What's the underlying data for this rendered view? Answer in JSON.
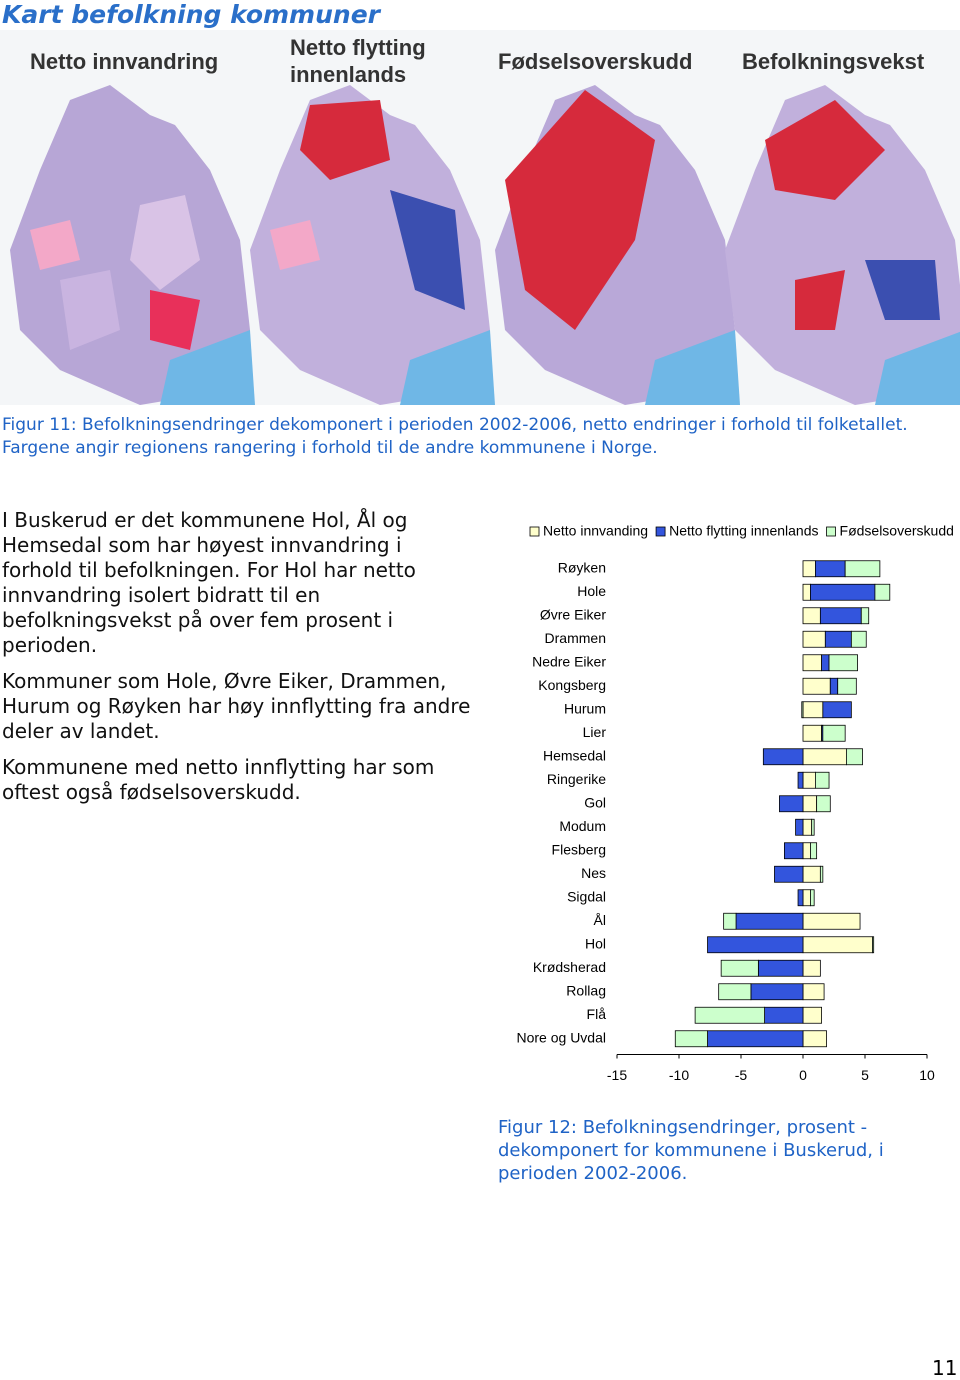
{
  "header": {
    "title": "Kart befolkning kommuner"
  },
  "maps": {
    "titles": [
      "Netto innvandring",
      "Netto flytting innenlands",
      "Fødselsoverskudd",
      "Befolkningsvekst"
    ]
  },
  "figure11": {
    "caption": "Figur 11: Befolkningsendringer dekomponert i perioden 2002-2006, netto endringer i forhold til folketallet. Fargene angir regionens rangering i forhold til de andre kommunene i Norge."
  },
  "body": {
    "paragraphs": [
      "I Buskerud er det kommunene Hol, Ål og Hemsedal som har høyest innvandring i forhold til befolkningen. For Hol har netto innvandring isolert bidratt til en befolkningsvekst på over fem prosent i perioden.",
      "Kommuner som Hole, Øvre Eiker, Drammen, Hurum og Røyken har høy innflytting fra andre deler av landet.",
      "Kommunene med netto innflytting har som oftest også fødselsoverskudd."
    ]
  },
  "chart_data": {
    "type": "bar",
    "orientation": "horizontal",
    "stacked": true,
    "categories": [
      "Røyken",
      "Hole",
      "Øvre Eiker",
      "Drammen",
      "Nedre Eiker",
      "Kongsberg",
      "Hurum",
      "Lier",
      "Hemsedal",
      "Ringerike",
      "Gol",
      "Modum",
      "Flesberg",
      "Nes",
      "Sigdal",
      "Ål",
      "Hol",
      "Krødsherad",
      "Rollag",
      "Flå",
      "Nore og Uvdal"
    ],
    "series": [
      {
        "name": "Netto innvanding",
        "color": "#ffffcc",
        "values": [
          1.0,
          0.6,
          1.4,
          1.8,
          1.5,
          2.2,
          1.6,
          1.5,
          3.5,
          1.0,
          1.1,
          0.7,
          0.6,
          1.4,
          0.6,
          4.6,
          5.6,
          1.4,
          1.7,
          1.5,
          1.9
        ]
      },
      {
        "name": "Netto flytting innenlands",
        "color": "#3355dd",
        "values": [
          2.4,
          5.2,
          3.3,
          2.1,
          0.6,
          0.6,
          2.3,
          0.1,
          -3.2,
          -0.4,
          -1.9,
          -0.6,
          -1.5,
          -2.3,
          -0.4,
          -5.4,
          -7.7,
          -3.6,
          -4.2,
          -3.1,
          -7.7
        ]
      },
      {
        "name": "Fødselsoverskudd",
        "color": "#ccffcc",
        "values": [
          2.8,
          1.2,
          0.6,
          1.2,
          2.3,
          1.5,
          -0.1,
          1.8,
          1.3,
          1.1,
          1.1,
          0.2,
          0.5,
          0.2,
          0.3,
          -1.0,
          0.1,
          -3.0,
          -2.6,
          -5.6,
          -2.6
        ]
      }
    ],
    "xlim": [
      -15,
      10
    ],
    "xticks": [
      -15,
      -10,
      -5,
      0,
      5,
      10
    ],
    "legend": "top"
  },
  "figure12": {
    "caption": "Figur 12: Befolkningsendringer, prosent - dekomponert for kommunene i Buskerud, i perioden 2002-2006."
  },
  "footer": {
    "page_number": "11"
  }
}
